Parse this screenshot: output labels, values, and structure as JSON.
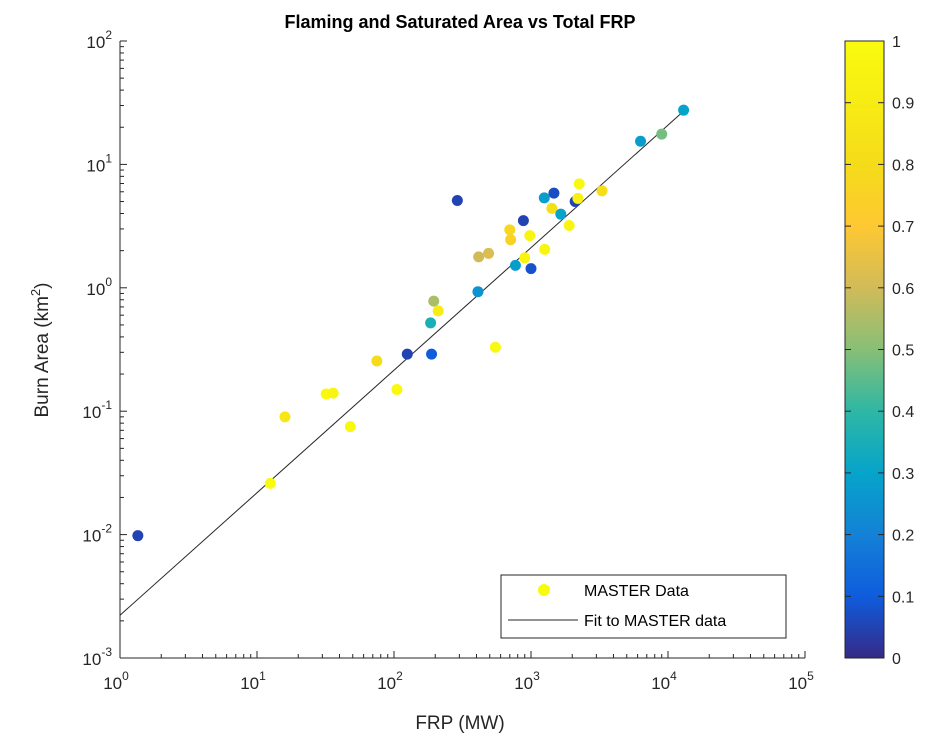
{
  "chart_data": {
    "type": "scatter",
    "title": "Flaming and Saturated Area vs Total FRP",
    "xlabel": "FRP (MW)",
    "ylabel_main": "Burn Area (km",
    "ylabel_sup": "2",
    "ylabel_close": ")",
    "xscale": "log",
    "yscale": "log",
    "xlim": [
      1,
      100000
    ],
    "ylim": [
      0.001,
      100
    ],
    "x_ticks": [
      {
        "base": "10",
        "exp": "0"
      },
      {
        "base": "10",
        "exp": "1"
      },
      {
        "base": "10",
        "exp": "2"
      },
      {
        "base": "10",
        "exp": "3"
      },
      {
        "base": "10",
        "exp": "4"
      },
      {
        "base": "10",
        "exp": "5"
      }
    ],
    "y_ticks": [
      {
        "base": "10",
        "exp": "-3"
      },
      {
        "base": "10",
        "exp": "-2"
      },
      {
        "base": "10",
        "exp": "-1"
      },
      {
        "base": "10",
        "exp": "0"
      },
      {
        "base": "10",
        "exp": "1"
      },
      {
        "base": "10",
        "exp": "2"
      }
    ],
    "colorbar": {
      "range": [
        0,
        1
      ],
      "tick_labels": [
        "0",
        "0.1",
        "0.2",
        "0.3",
        "0.4",
        "0.5",
        "0.6",
        "0.7",
        "0.8",
        "0.9",
        "1"
      ],
      "colormap": "parula"
    },
    "legend": {
      "position": "bottom-right",
      "entries": [
        "MASTER Data",
        "Fit to MASTER data"
      ]
    },
    "series": [
      {
        "name": "MASTER Data",
        "kind": "scatter",
        "points": [
          {
            "x": 1.35,
            "y": 0.0098,
            "c": 0.05
          },
          {
            "x": 12.5,
            "y": 0.026,
            "c": 1.0
          },
          {
            "x": 16,
            "y": 0.09,
            "c": 0.88
          },
          {
            "x": 32,
            "y": 0.138,
            "c": 0.98
          },
          {
            "x": 36,
            "y": 0.14,
            "c": 0.97
          },
          {
            "x": 48,
            "y": 0.075,
            "c": 0.98
          },
          {
            "x": 75,
            "y": 0.255,
            "c": 0.8
          },
          {
            "x": 105,
            "y": 0.15,
            "c": 0.98
          },
          {
            "x": 125,
            "y": 0.29,
            "c": 0.05
          },
          {
            "x": 185,
            "y": 0.52,
            "c": 0.35
          },
          {
            "x": 188,
            "y": 0.29,
            "c": 0.1
          },
          {
            "x": 195,
            "y": 0.78,
            "c": 0.55
          },
          {
            "x": 210,
            "y": 0.65,
            "c": 0.9
          },
          {
            "x": 290,
            "y": 5.1,
            "c": 0.05
          },
          {
            "x": 410,
            "y": 0.93,
            "c": 0.25
          },
          {
            "x": 415,
            "y": 1.78,
            "c": 0.6
          },
          {
            "x": 490,
            "y": 1.9,
            "c": 0.62
          },
          {
            "x": 550,
            "y": 0.33,
            "c": 0.98
          },
          {
            "x": 700,
            "y": 2.95,
            "c": 0.78
          },
          {
            "x": 710,
            "y": 2.45,
            "c": 0.75
          },
          {
            "x": 770,
            "y": 1.52,
            "c": 0.28
          },
          {
            "x": 880,
            "y": 3.5,
            "c": 0.05
          },
          {
            "x": 900,
            "y": 1.75,
            "c": 0.97
          },
          {
            "x": 980,
            "y": 2.65,
            "c": 0.97
          },
          {
            "x": 1000,
            "y": 1.43,
            "c": 0.08
          },
          {
            "x": 1250,
            "y": 5.35,
            "c": 0.28
          },
          {
            "x": 1260,
            "y": 2.05,
            "c": 0.97
          },
          {
            "x": 1420,
            "y": 4.4,
            "c": 0.82
          },
          {
            "x": 1470,
            "y": 5.85,
            "c": 0.07
          },
          {
            "x": 1650,
            "y": 3.95,
            "c": 0.3
          },
          {
            "x": 1900,
            "y": 3.2,
            "c": 0.97
          },
          {
            "x": 2100,
            "y": 5.0,
            "c": 0.05
          },
          {
            "x": 2200,
            "y": 5.3,
            "c": 0.93
          },
          {
            "x": 2250,
            "y": 6.95,
            "c": 0.99
          },
          {
            "x": 3300,
            "y": 6.1,
            "c": 0.82
          },
          {
            "x": 6300,
            "y": 15.4,
            "c": 0.28
          },
          {
            "x": 9000,
            "y": 17.6,
            "c": 0.48
          },
          {
            "x": 13000,
            "y": 27.5,
            "c": 0.3
          }
        ]
      },
      {
        "name": "Fit to MASTER data",
        "kind": "line",
        "points": [
          {
            "x": 1,
            "y": 0.00222
          },
          {
            "x": 13000,
            "y": 27.0
          }
        ]
      }
    ]
  },
  "colors": {
    "line": "#262626",
    "axis": "#262626",
    "legend_marker": "#f9fb0e"
  }
}
